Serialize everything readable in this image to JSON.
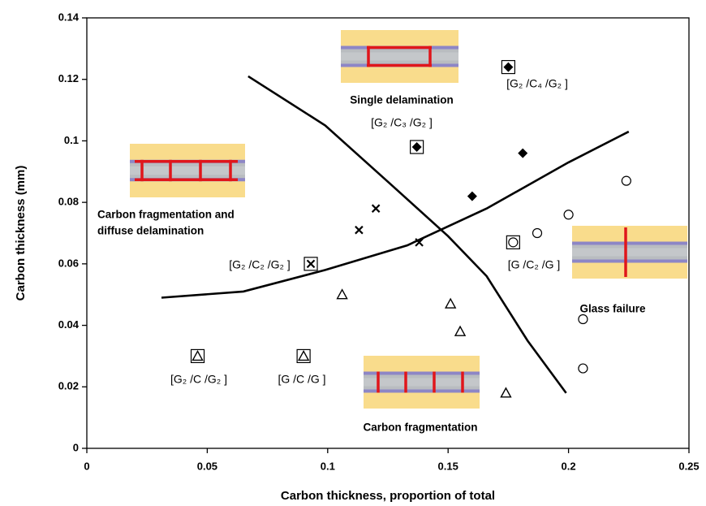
{
  "chart_data": {
    "type": "scatter",
    "xlabel": "Carbon thickness, proportion of total",
    "ylabel": "Carbon thickness (mm)",
    "xlim": [
      0,
      0.25
    ],
    "xticks": [
      0,
      0.05,
      0.1,
      0.15,
      0.2,
      0.25
    ],
    "ylim": [
      0,
      0.14
    ],
    "yticks": [
      0,
      0.02,
      0.04,
      0.06,
      0.08,
      0.1,
      0.12,
      0.14
    ],
    "grid": false,
    "series": [
      {
        "marker": "diamond",
        "color": "#000000",
        "x": [
          0.175,
          0.137,
          0.181,
          0.16
        ],
        "values": [
          0.124,
          0.098,
          0.096,
          0.082
        ],
        "boxed": [
          true,
          true,
          false,
          false
        ]
      },
      {
        "marker": "x",
        "color": "#000000",
        "x": [
          0.12,
          0.113,
          0.138,
          0.093
        ],
        "values": [
          0.078,
          0.071,
          0.067,
          0.06
        ],
        "boxed": [
          false,
          false,
          false,
          true
        ]
      },
      {
        "marker": "circle",
        "color": "#000000",
        "x": [
          0.224,
          0.2,
          0.187,
          0.177,
          0.206,
          0.206
        ],
        "values": [
          0.087,
          0.076,
          0.07,
          0.067,
          0.042,
          0.026
        ],
        "boxed": [
          false,
          false,
          false,
          true,
          false,
          false
        ]
      },
      {
        "marker": "triangle",
        "color": "#000000",
        "x": [
          0.106,
          0.151,
          0.155,
          0.174,
          0.046,
          0.09
        ],
        "values": [
          0.05,
          0.047,
          0.038,
          0.018,
          0.03,
          0.03
        ],
        "boxed": [
          false,
          false,
          false,
          false,
          true,
          true
        ]
      }
    ],
    "lines": [
      {
        "color": "#000000",
        "x": [
          0.031,
          0.065,
          0.099,
          0.133,
          0.166,
          0.2,
          0.225
        ],
        "values": [
          0.049,
          0.051,
          0.058,
          0.066,
          0.078,
          0.093,
          0.103
        ]
      },
      {
        "color": "#000000",
        "x": [
          0.067,
          0.099,
          0.126,
          0.15,
          0.166,
          0.183,
          0.199
        ],
        "values": [
          0.121,
          0.105,
          0.086,
          0.069,
          0.056,
          0.035,
          0.018
        ]
      }
    ],
    "annotations": [
      "Single delamination",
      "[G₂ /C₃ /G₂ ]",
      "[G₂ /C₄ /G₂ ]",
      "Carbon fragmentation and",
      "diffuse delamination",
      "[G₂ /C₂ /G₂ ]",
      "[G /C₂ /G ]",
      "Glass failure",
      "[G₂ /C /G₂ ]",
      "[G /C /G ]",
      "Carbon fragmentation"
    ]
  }
}
